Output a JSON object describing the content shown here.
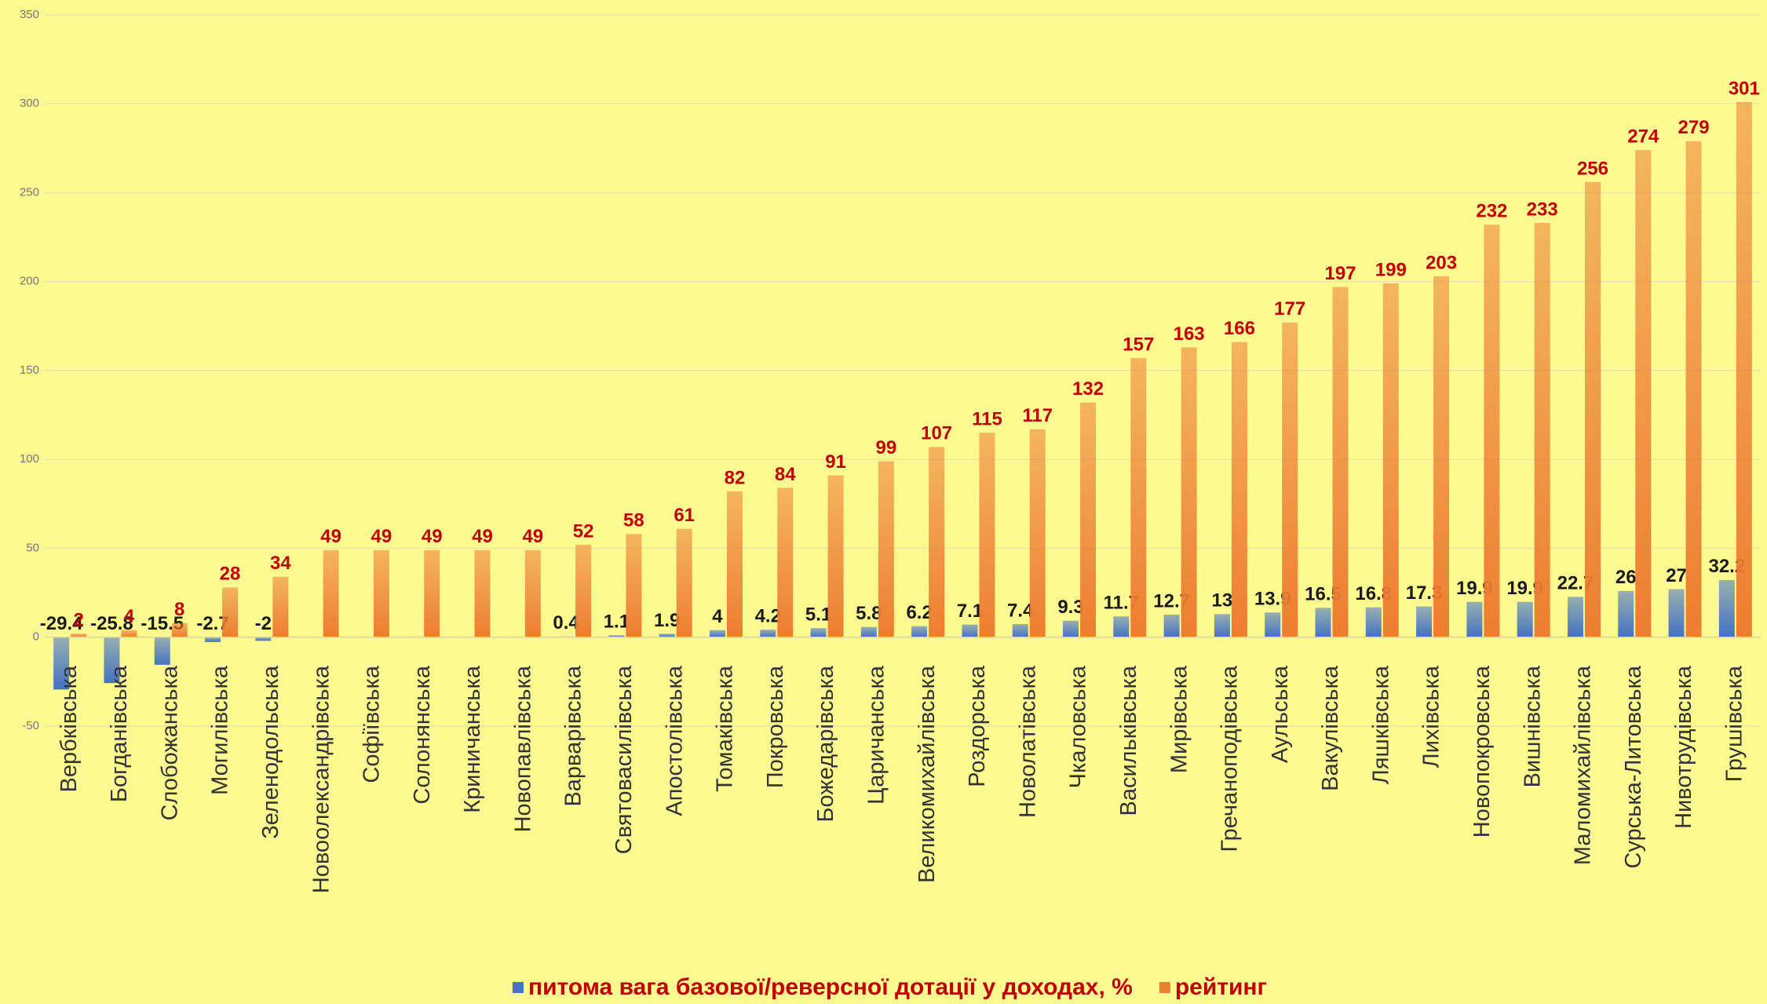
{
  "chart_data": {
    "type": "bar",
    "categories": [
      "Вербківська",
      "Богданівська",
      "Слобожанська",
      "Могилівська",
      "Зеленодольська",
      "Новоолександрівська",
      "Софіївська",
      "Солонянська",
      "Криничанська",
      "Новопавлівська",
      "Варварівська",
      "Святовасилівська",
      "Апостолівська",
      "Томаківська",
      "Покровська",
      "Божедарівська",
      "Царичанська",
      "Великомихайлівська",
      "Роздорська",
      "Новолатівська",
      "Чкаловська",
      "Васильківська",
      "Мирівська",
      "Гречаноподівська",
      "Аульська",
      "Вакулівська",
      "Ляшківська",
      "Лихівська",
      "Новопокровська",
      "Вишнівська",
      "Маломихайлівська",
      "Сурська-Литовська",
      "Нивотрудівська",
      "Грушівська"
    ],
    "series": [
      {
        "name": "питома вага базової/реверсної дотації у доходах, %",
        "color": "#4472c4",
        "values": [
          -29.4,
          -25.8,
          -15.5,
          -2.7,
          -2,
          null,
          null,
          null,
          null,
          null,
          0.4,
          1.1,
          1.9,
          4,
          4.2,
          5.1,
          5.8,
          6.2,
          7.1,
          7.4,
          9.3,
          11.7,
          12.7,
          13,
          13.9,
          16.5,
          16.8,
          17.3,
          19.9,
          19.9,
          22.7,
          26,
          27,
          32.2
        ]
      },
      {
        "name": "рейтинг",
        "color": "#ed7d31",
        "values": [
          2,
          4,
          8,
          28,
          34,
          49,
          49,
          49,
          49,
          49,
          52,
          58,
          61,
          82,
          84,
          91,
          99,
          107,
          115,
          117,
          132,
          157,
          163,
          166,
          177,
          197,
          199,
          203,
          232,
          233,
          256,
          274,
          279,
          301
        ]
      }
    ],
    "ylim": [
      -50,
      350
    ],
    "yticks": [
      -50,
      0,
      50,
      100,
      150,
      200,
      250,
      300,
      350
    ],
    "grid": true,
    "legend": "bottom"
  }
}
